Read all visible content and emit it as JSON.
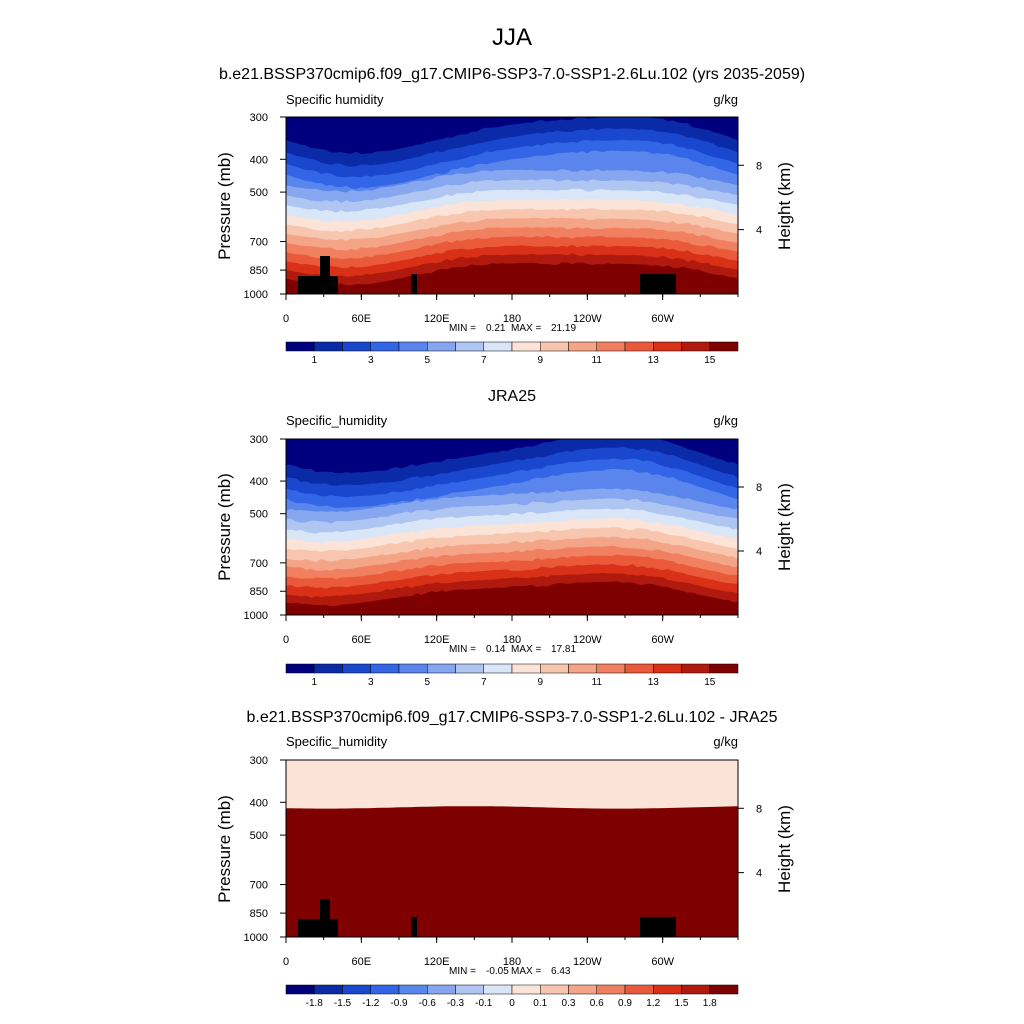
{
  "figure": {
    "season_title": "JJA"
  },
  "palette": [
    "#00007f",
    "#0a2aa8",
    "#1948cf",
    "#3366e6",
    "#5a85ec",
    "#86a6f0",
    "#b0c6f2",
    "#d8e6f7",
    "#fbe3d7",
    "#f8c5ae",
    "#f5a587",
    "#f08060",
    "#ea5a3a",
    "#d93018",
    "#b01a0e",
    "#7f0000"
  ],
  "chart_data": [
    {
      "type": "heatmap",
      "title": "b.e21.BSSP370cmip6.f09_g17.CMIP6-SSP3-7.0-SSP1-2.6Lu.102 (yrs 2035-2059)",
      "left_string": "Specific humidity",
      "units": "g/kg",
      "xlabel": "",
      "ylabel": "Pressure (mb)",
      "y2label": "Height (km)",
      "x_ticks": [
        "0",
        "60E",
        "120E",
        "180",
        "120W",
        "60W"
      ],
      "y_ticks": [
        300,
        400,
        500,
        700,
        850,
        1000
      ],
      "y2_ticks": [
        8,
        4
      ],
      "min": 0.21,
      "max": 21.19,
      "min_label": "MIN =",
      "max_label": "MAX =",
      "colorbar_labels": [
        "1",
        "3",
        "5",
        "7",
        "9",
        "11",
        "13",
        "15"
      ],
      "mode": "abs",
      "topography": true,
      "seed": 3
    },
    {
      "type": "heatmap",
      "title": "JRA25",
      "left_string": "Specific_humidity",
      "units": "g/kg",
      "xlabel": "",
      "ylabel": "Pressure (mb)",
      "y2label": "Height (km)",
      "x_ticks": [
        "0",
        "60E",
        "120E",
        "180",
        "120W",
        "60W"
      ],
      "y_ticks": [
        300,
        400,
        500,
        700,
        850,
        1000
      ],
      "y2_ticks": [
        8,
        4
      ],
      "min": 0.14,
      "max": 17.81,
      "min_label": "MIN =",
      "max_label": "MAX =",
      "colorbar_labels": [
        "1",
        "3",
        "5",
        "7",
        "9",
        "11",
        "13",
        "15"
      ],
      "mode": "abs",
      "topography": false,
      "seed": 7
    },
    {
      "type": "heatmap",
      "title": "b.e21.BSSP370cmip6.f09_g17.CMIP6-SSP3-7.0-SSP1-2.6Lu.102 - JRA25",
      "left_string": "Specific_humidity",
      "units": "g/kg",
      "xlabel": "",
      "ylabel": "Pressure (mb)",
      "y2label": "Height (km)",
      "x_ticks": [
        "0",
        "60E",
        "120E",
        "180",
        "120W",
        "60W"
      ],
      "y_ticks": [
        300,
        400,
        500,
        700,
        850,
        1000
      ],
      "y2_ticks": [
        8,
        4
      ],
      "min": -0.05,
      "max": 6.43,
      "min_label": "MIN =",
      "max_label": "MAX =",
      "colorbar_labels": [
        "-1.8",
        "-1.5",
        "-1.2",
        "-0.9",
        "-0.6",
        "-0.3",
        "-0.1",
        "0",
        "0.1",
        "0.3",
        "0.6",
        "0.9",
        "1.2",
        "1.5",
        "1.8"
      ],
      "mode": "diff",
      "topography": true,
      "seed": 11
    }
  ]
}
